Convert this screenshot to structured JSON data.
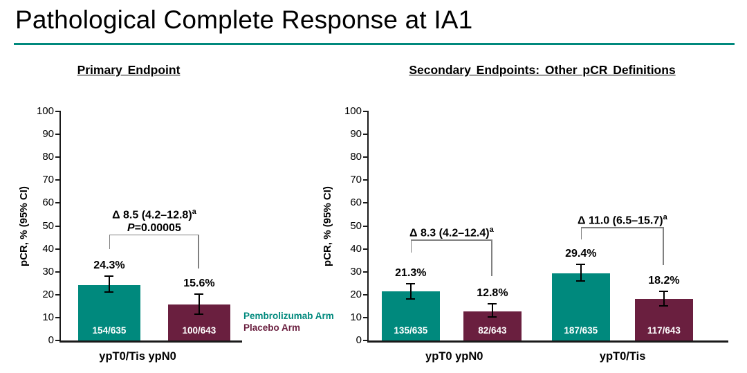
{
  "title": "Pathological Complete Response at IA1",
  "colors": {
    "teal": "#00897D",
    "maroon": "#6A1F3F",
    "axis": "#1a1a1a",
    "bracket": "#808080",
    "error_bar": "#000000",
    "title_underline": "#00897D"
  },
  "legend": {
    "items": [
      {
        "label": "Pembrolizumab Arm",
        "color": "#00897D"
      },
      {
        "label": "Placebo Arm",
        "color": "#6A1F3F"
      }
    ]
  },
  "chart_data": [
    {
      "type": "bar",
      "title": "Primary Endpoint",
      "xlabel": "",
      "ylabel": "pCR, % (95% CI)",
      "ylim": [
        0,
        100
      ],
      "ytick_step": 10,
      "grid": false,
      "categories": [
        "ypT0/Tis ypN0"
      ],
      "series": [
        {
          "name": "Pembrolizumab Arm",
          "color": "#00897D",
          "values": [
            24.3
          ],
          "value_labels": [
            "24.3%"
          ],
          "n_labels": [
            "154/635"
          ],
          "ci_low": [
            21.0
          ],
          "ci_high": [
            28.0
          ]
        },
        {
          "name": "Placebo Arm",
          "color": "#6A1F3F",
          "values": [
            15.6
          ],
          "value_labels": [
            "15.6%"
          ],
          "n_labels": [
            "100/643"
          ],
          "ci_low": [
            11.5
          ],
          "ci_high": [
            20.3
          ]
        }
      ],
      "annotations": [
        {
          "delta": "Δ 8.5 (4.2–12.8)",
          "sup": "a",
          "p_italic": "P",
          "p_rest": "=0.00005"
        }
      ]
    },
    {
      "type": "bar",
      "title": "Secondary Endpoints: Other pCR Definitions",
      "xlabel": "",
      "ylabel": "pCR, % (95% CI)",
      "ylim": [
        0,
        100
      ],
      "ytick_step": 10,
      "grid": false,
      "categories": [
        "ypT0 ypN0",
        "ypT0/Tis"
      ],
      "series": [
        {
          "name": "Pembrolizumab Arm",
          "color": "#00897D",
          "values": [
            21.3,
            29.4
          ],
          "value_labels": [
            "21.3%",
            "29.4%"
          ],
          "n_labels": [
            "135/635",
            "187/635"
          ],
          "ci_low": [
            18.0,
            25.9
          ],
          "ci_high": [
            24.9,
            33.2
          ]
        },
        {
          "name": "Placebo Arm",
          "color": "#6A1F3F",
          "values": [
            12.8,
            18.2
          ],
          "value_labels": [
            "12.8%",
            "18.2%"
          ],
          "n_labels": [
            "82/643",
            "117/643"
          ],
          "ci_low": [
            10.3,
            15.2
          ],
          "ci_high": [
            15.9,
            21.5
          ]
        }
      ],
      "annotations": [
        {
          "delta": "Δ 8.3 (4.2–12.4)",
          "sup": "a"
        },
        {
          "delta": "Δ 11.0 (6.5–15.7)",
          "sup": "a"
        }
      ]
    }
  ]
}
